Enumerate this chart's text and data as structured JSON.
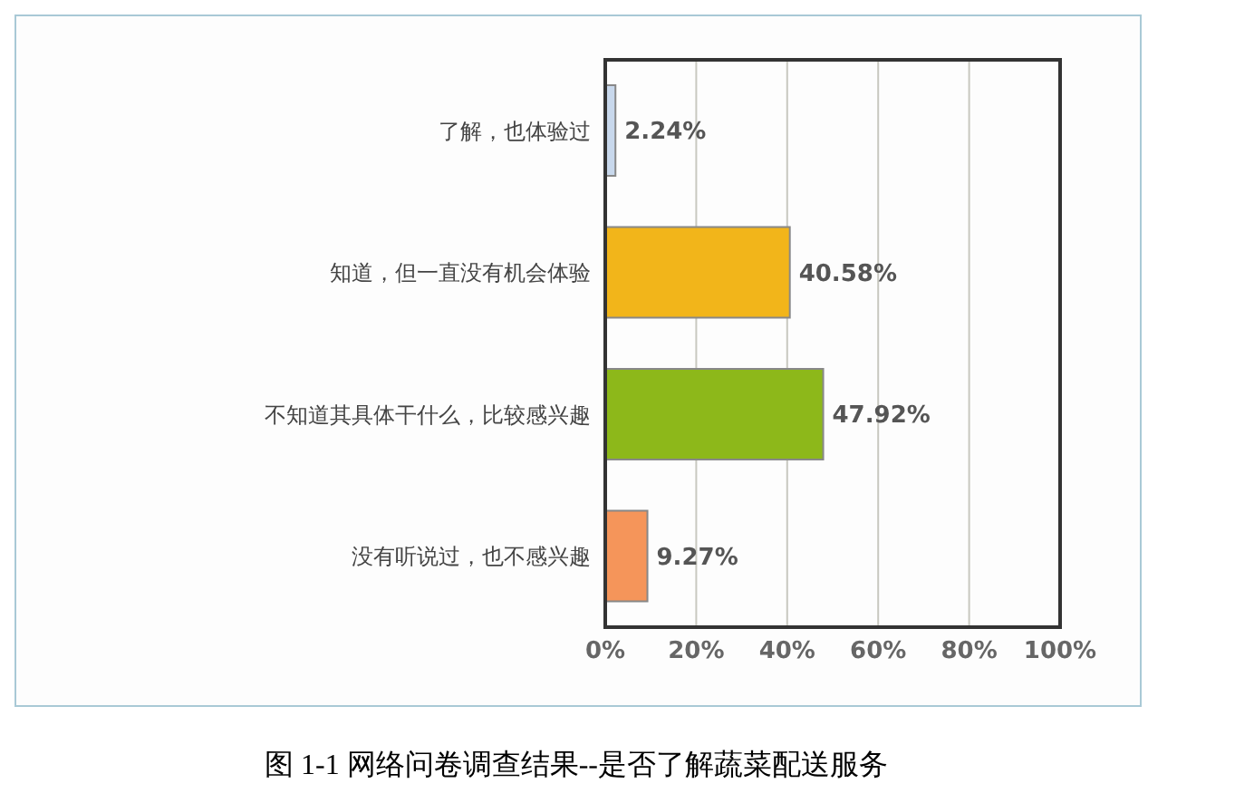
{
  "chart_data": {
    "type": "bar",
    "orientation": "horizontal",
    "title": "图 1-1 网络问卷调查结果--是否了解蔬菜配送服务",
    "categories": [
      "了解，也体验过",
      "知道，但一直没有机会体验",
      "不知道其具体干什么，比较感兴趣",
      "没有听说过，也不感兴趣"
    ],
    "values": [
      2.24,
      40.58,
      47.92,
      9.27
    ],
    "colors": [
      "#c8d8ec",
      "#f2b51a",
      "#8db81a",
      "#f5955a"
    ],
    "value_labels": [
      "2.24%",
      "40.58%",
      "47.92%",
      "9.27%"
    ],
    "xlim": [
      0,
      100
    ],
    "xticks": [
      {
        "value": 0,
        "label": "0%"
      },
      {
        "value": 20,
        "label": "20%"
      },
      {
        "value": 40,
        "label": "40%"
      },
      {
        "value": 60,
        "label": "60%"
      },
      {
        "value": 80,
        "label": "80%"
      },
      {
        "value": 100,
        "label": "100%"
      }
    ],
    "grid": "x"
  }
}
